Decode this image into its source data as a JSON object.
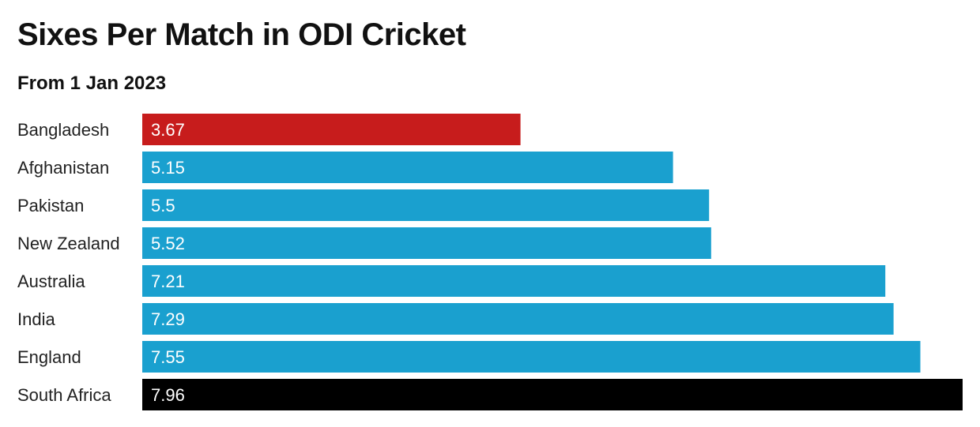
{
  "chart_data": {
    "type": "bar",
    "orientation": "horizontal",
    "title": "Sixes Per Match in ODI Cricket",
    "subtitle": "From 1 Jan 2023",
    "categories": [
      "Bangladesh",
      "Afghanistan",
      "Pakistan",
      "New Zealand",
      "Australia",
      "India",
      "England",
      "South Africa"
    ],
    "values": [
      3.67,
      5.15,
      5.5,
      5.52,
      7.21,
      7.29,
      7.55,
      7.96
    ],
    "value_labels": [
      "3.67",
      "5.15",
      "5.5",
      "5.52",
      "7.21",
      "7.29",
      "7.55",
      "7.96"
    ],
    "bar_colors": [
      "#c71c1c",
      "#1aa0cf",
      "#1aa0cf",
      "#1aa0cf",
      "#1aa0cf",
      "#1aa0cf",
      "#1aa0cf",
      "#000000"
    ],
    "xlabel": "",
    "ylabel": "",
    "xlim": [
      0,
      7.96
    ],
    "grid": false,
    "legend": "none"
  }
}
